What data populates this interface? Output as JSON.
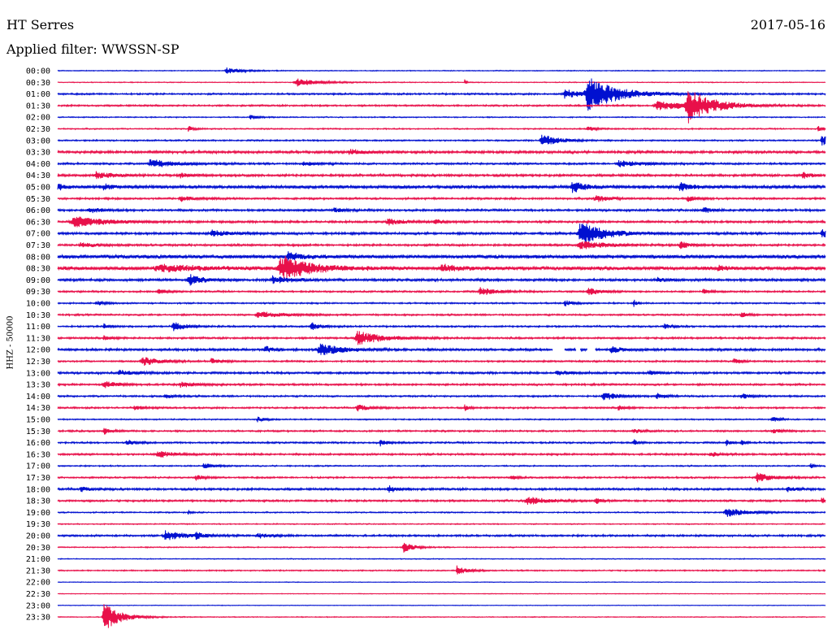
{
  "header": {
    "station": "HT Serres",
    "date": "2017-05-16",
    "filter": "Applied filter: WWSSN-SP"
  },
  "channel_label": "HHZ - 50000",
  "colors": {
    "blue": "#0010d0",
    "red": "#e8104a"
  },
  "chart_data": {
    "type": "line",
    "color_cycle": [
      "blue",
      "red"
    ],
    "rows": [
      {
        "time": "00:00",
        "color": "blue",
        "noise": 0.4,
        "events": [
          {
            "x": 0.22,
            "amp": 4,
            "dur": 0.02
          }
        ]
      },
      {
        "time": "00:30",
        "color": "red",
        "noise": 0.4,
        "events": [
          {
            "x": 0.31,
            "amp": 5,
            "dur": 0.03
          },
          {
            "x": 0.53,
            "amp": 5,
            "dur": 0.002
          }
        ]
      },
      {
        "time": "01:00",
        "color": "blue",
        "noise": 0.8,
        "events": [
          {
            "x": 0.66,
            "amp": 6,
            "dur": 0.02
          },
          {
            "x": 0.69,
            "amp": 22,
            "dur": 0.035
          }
        ]
      },
      {
        "time": "01:30",
        "color": "red",
        "noise": 0.8,
        "events": [
          {
            "x": 0.78,
            "amp": 6,
            "dur": 0.04
          },
          {
            "x": 0.82,
            "amp": 20,
            "dur": 0.03
          }
        ]
      },
      {
        "time": "02:00",
        "color": "blue",
        "noise": 0.5,
        "events": [
          {
            "x": 0.25,
            "amp": 3,
            "dur": 0.01
          }
        ]
      },
      {
        "time": "02:30",
        "color": "red",
        "noise": 0.6,
        "events": [
          {
            "x": 0.17,
            "amp": 4,
            "dur": 0.006
          },
          {
            "x": 0.69,
            "amp": 3,
            "dur": 0.01
          },
          {
            "x": 0.99,
            "amp": 4,
            "dur": 0.006
          }
        ]
      },
      {
        "time": "03:00",
        "color": "blue",
        "noise": 0.7,
        "events": [
          {
            "x": 0.63,
            "amp": 8,
            "dur": 0.02
          },
          {
            "x": 0.995,
            "amp": 7,
            "dur": 0.01
          }
        ]
      },
      {
        "time": "03:30",
        "color": "red",
        "noise": 1.2,
        "events": [
          {
            "x": 0.38,
            "amp": 3,
            "dur": 0.02
          }
        ]
      },
      {
        "time": "04:00",
        "color": "blue",
        "noise": 0.9,
        "events": [
          {
            "x": 0.12,
            "amp": 5,
            "dur": 0.03
          },
          {
            "x": 0.32,
            "amp": 3,
            "dur": 0.015
          },
          {
            "x": 0.73,
            "amp": 4,
            "dur": 0.03
          }
        ]
      },
      {
        "time": "04:30",
        "color": "red",
        "noise": 1.1,
        "events": [
          {
            "x": 0.05,
            "amp": 4,
            "dur": 0.02
          },
          {
            "x": 0.16,
            "amp": 3,
            "dur": 0.01
          },
          {
            "x": 0.97,
            "amp": 4,
            "dur": 0.01
          }
        ]
      },
      {
        "time": "05:00",
        "color": "blue",
        "noise": 1.5,
        "events": [
          {
            "x": 0.0,
            "amp": 4,
            "dur": 0.01
          },
          {
            "x": 0.06,
            "amp": 4,
            "dur": 0.01
          },
          {
            "x": 0.67,
            "amp": 7,
            "dur": 0.015
          },
          {
            "x": 0.81,
            "amp": 6,
            "dur": 0.015
          }
        ]
      },
      {
        "time": "05:30",
        "color": "red",
        "noise": 0.9,
        "events": [
          {
            "x": 0.16,
            "amp": 3,
            "dur": 0.02
          },
          {
            "x": 0.7,
            "amp": 5,
            "dur": 0.015
          },
          {
            "x": 0.82,
            "amp": 4,
            "dur": 0.01
          }
        ]
      },
      {
        "time": "06:00",
        "color": "blue",
        "noise": 1.0,
        "events": [
          {
            "x": 0.04,
            "amp": 4,
            "dur": 0.015
          },
          {
            "x": 0.36,
            "amp": 3,
            "dur": 0.01
          },
          {
            "x": 0.84,
            "amp": 4,
            "dur": 0.01
          }
        ]
      },
      {
        "time": "06:30",
        "color": "red",
        "noise": 1.0,
        "events": [
          {
            "x": 0.02,
            "amp": 7,
            "dur": 0.04
          },
          {
            "x": 0.43,
            "amp": 4,
            "dur": 0.02
          },
          {
            "x": 0.49,
            "amp": 3,
            "dur": 0.01
          }
        ]
      },
      {
        "time": "07:00",
        "color": "blue",
        "noise": 1.1,
        "events": [
          {
            "x": 0.2,
            "amp": 4,
            "dur": 0.02
          },
          {
            "x": 0.68,
            "amp": 15,
            "dur": 0.03
          },
          {
            "x": 0.995,
            "amp": 5,
            "dur": 0.01
          }
        ]
      },
      {
        "time": "07:30",
        "color": "red",
        "noise": 1.0,
        "events": [
          {
            "x": 0.03,
            "amp": 3,
            "dur": 0.02
          },
          {
            "x": 0.68,
            "amp": 5,
            "dur": 0.03
          },
          {
            "x": 0.81,
            "amp": 5,
            "dur": 0.01
          }
        ]
      },
      {
        "time": "08:00",
        "color": "blue",
        "noise": 1.8,
        "events": [
          {
            "x": 0.3,
            "amp": 5,
            "dur": 0.02
          }
        ]
      },
      {
        "time": "08:30",
        "color": "red",
        "noise": 1.8,
        "events": [
          {
            "x": 0.13,
            "amp": 4,
            "dur": 0.05
          },
          {
            "x": 0.29,
            "amp": 16,
            "dur": 0.035
          },
          {
            "x": 0.5,
            "amp": 4,
            "dur": 0.02
          },
          {
            "x": 0.86,
            "amp": 3,
            "dur": 0.01
          }
        ]
      },
      {
        "time": "09:00",
        "color": "blue",
        "noise": 1.2,
        "events": [
          {
            "x": 0.17,
            "amp": 7,
            "dur": 0.015
          },
          {
            "x": 0.28,
            "amp": 5,
            "dur": 0.02
          },
          {
            "x": 0.78,
            "amp": 3,
            "dur": 0.01
          }
        ]
      },
      {
        "time": "09:30",
        "color": "red",
        "noise": 0.8,
        "events": [
          {
            "x": 0.13,
            "amp": 3,
            "dur": 0.01
          },
          {
            "x": 0.55,
            "amp": 5,
            "dur": 0.02
          },
          {
            "x": 0.69,
            "amp": 5,
            "dur": 0.015
          },
          {
            "x": 0.84,
            "amp": 3,
            "dur": 0.008
          }
        ]
      },
      {
        "time": "10:00",
        "color": "blue",
        "noise": 0.7,
        "events": [
          {
            "x": 0.05,
            "amp": 3,
            "dur": 0.01
          },
          {
            "x": 0.66,
            "amp": 4,
            "dur": 0.01
          },
          {
            "x": 0.75,
            "amp": 5,
            "dur": 0.004
          }
        ]
      },
      {
        "time": "10:30",
        "color": "red",
        "noise": 0.8,
        "events": [
          {
            "x": 0.26,
            "amp": 4,
            "dur": 0.03
          },
          {
            "x": 0.89,
            "amp": 3,
            "dur": 0.01
          }
        ]
      },
      {
        "time": "11:00",
        "color": "blue",
        "noise": 0.8,
        "events": [
          {
            "x": 0.06,
            "amp": 3,
            "dur": 0.01
          },
          {
            "x": 0.15,
            "amp": 6,
            "dur": 0.015
          },
          {
            "x": 0.33,
            "amp": 5,
            "dur": 0.01
          },
          {
            "x": 0.79,
            "amp": 3,
            "dur": 0.01
          }
        ]
      },
      {
        "time": "11:30",
        "color": "red",
        "noise": 0.9,
        "events": [
          {
            "x": 0.06,
            "amp": 3,
            "dur": 0.01
          },
          {
            "x": 0.39,
            "amp": 9,
            "dur": 0.03
          }
        ]
      },
      {
        "time": "12:00",
        "color": "blue",
        "noise": 1.1,
        "events": [
          {
            "x": 0.27,
            "amp": 4,
            "dur": 0.01
          },
          {
            "x": 0.34,
            "amp": 7,
            "dur": 0.03
          },
          {
            "x": 0.72,
            "amp": 4,
            "dur": 0.015
          }
        ],
        "gaps": [
          [
            0.645,
            0.66
          ],
          [
            0.675,
            0.68
          ],
          [
            0.69,
            0.7
          ]
        ]
      },
      {
        "time": "12:30",
        "color": "red",
        "noise": 0.8,
        "events": [
          {
            "x": 0.11,
            "amp": 6,
            "dur": 0.02
          },
          {
            "x": 0.2,
            "amp": 4,
            "dur": 0.01
          },
          {
            "x": 0.88,
            "amp": 3,
            "dur": 0.01
          }
        ]
      },
      {
        "time": "13:00",
        "color": "blue",
        "noise": 1.0,
        "events": [
          {
            "x": 0.08,
            "amp": 3,
            "dur": 0.02
          },
          {
            "x": 0.65,
            "amp": 3,
            "dur": 0.015
          },
          {
            "x": 0.77,
            "amp": 3,
            "dur": 0.01
          }
        ]
      },
      {
        "time": "13:30",
        "color": "red",
        "noise": 0.9,
        "events": [
          {
            "x": 0.06,
            "amp": 5,
            "dur": 0.015
          },
          {
            "x": 0.16,
            "amp": 3,
            "dur": 0.02
          }
        ]
      },
      {
        "time": "14:00",
        "color": "blue",
        "noise": 0.8,
        "events": [
          {
            "x": 0.14,
            "amp": 3,
            "dur": 0.01
          },
          {
            "x": 0.71,
            "amp": 5,
            "dur": 0.02
          },
          {
            "x": 0.78,
            "amp": 4,
            "dur": 0.01
          },
          {
            "x": 0.89,
            "amp": 4,
            "dur": 0.01
          }
        ]
      },
      {
        "time": "14:30",
        "color": "red",
        "noise": 0.8,
        "events": [
          {
            "x": 0.1,
            "amp": 3,
            "dur": 0.01
          },
          {
            "x": 0.39,
            "amp": 4,
            "dur": 0.015
          },
          {
            "x": 0.53,
            "amp": 4,
            "dur": 0.005
          },
          {
            "x": 0.73,
            "amp": 3,
            "dur": 0.01
          }
        ]
      },
      {
        "time": "15:00",
        "color": "blue",
        "noise": 0.6,
        "events": [
          {
            "x": 0.26,
            "amp": 3,
            "dur": 0.01
          },
          {
            "x": 0.93,
            "amp": 4,
            "dur": 0.008
          }
        ]
      },
      {
        "time": "15:30",
        "color": "red",
        "noise": 0.8,
        "events": [
          {
            "x": 0.06,
            "amp": 4,
            "dur": 0.01
          },
          {
            "x": 0.75,
            "amp": 3,
            "dur": 0.01
          },
          {
            "x": 0.93,
            "amp": 3,
            "dur": 0.01
          }
        ]
      },
      {
        "time": "16:00",
        "color": "blue",
        "noise": 0.8,
        "events": [
          {
            "x": 0.09,
            "amp": 4,
            "dur": 0.01
          },
          {
            "x": 0.42,
            "amp": 4,
            "dur": 0.008
          },
          {
            "x": 0.75,
            "amp": 4,
            "dur": 0.005
          },
          {
            "x": 0.87,
            "amp": 4,
            "dur": 0.006
          },
          {
            "x": 0.89,
            "amp": 3,
            "dur": 0.006
          }
        ]
      },
      {
        "time": "16:30",
        "color": "red",
        "noise": 0.9,
        "events": [
          {
            "x": 0.13,
            "amp": 5,
            "dur": 0.015
          },
          {
            "x": 0.85,
            "amp": 3,
            "dur": 0.01
          }
        ]
      },
      {
        "time": "17:00",
        "color": "blue",
        "noise": 0.6,
        "events": [
          {
            "x": 0.19,
            "amp": 3,
            "dur": 0.015
          },
          {
            "x": 0.98,
            "amp": 4,
            "dur": 0.005
          }
        ]
      },
      {
        "time": "17:30",
        "color": "red",
        "noise": 0.8,
        "events": [
          {
            "x": 0.18,
            "amp": 3,
            "dur": 0.01
          },
          {
            "x": 0.59,
            "amp": 3,
            "dur": 0.006
          },
          {
            "x": 0.91,
            "amp": 6,
            "dur": 0.02
          }
        ]
      },
      {
        "time": "18:00",
        "color": "blue",
        "noise": 1.0,
        "events": [
          {
            "x": 0.03,
            "amp": 3,
            "dur": 0.01
          },
          {
            "x": 0.43,
            "amp": 5,
            "dur": 0.01
          },
          {
            "x": 0.95,
            "amp": 3,
            "dur": 0.01
          }
        ]
      },
      {
        "time": "18:30",
        "color": "red",
        "noise": 0.9,
        "events": [
          {
            "x": 0.61,
            "amp": 6,
            "dur": 0.02
          },
          {
            "x": 0.7,
            "amp": 4,
            "dur": 0.008
          },
          {
            "x": 0.995,
            "amp": 4,
            "dur": 0.006
          }
        ]
      },
      {
        "time": "19:00",
        "color": "blue",
        "noise": 0.6,
        "events": [
          {
            "x": 0.17,
            "amp": 3,
            "dur": 0.003
          },
          {
            "x": 0.87,
            "amp": 6,
            "dur": 0.025
          }
        ]
      },
      {
        "time": "19:30",
        "color": "red",
        "noise": 0.5,
        "events": []
      },
      {
        "time": "20:00",
        "color": "blue",
        "noise": 0.9,
        "events": [
          {
            "x": 0.14,
            "amp": 6,
            "dur": 0.025
          },
          {
            "x": 0.18,
            "amp": 4,
            "dur": 0.01
          },
          {
            "x": 0.26,
            "amp": 3,
            "dur": 0.015
          }
        ]
      },
      {
        "time": "20:30",
        "color": "red",
        "noise": 0.5,
        "events": [
          {
            "x": 0.45,
            "amp": 7,
            "dur": 0.012
          }
        ]
      },
      {
        "time": "21:00",
        "color": "blue",
        "noise": 0.4,
        "events": []
      },
      {
        "time": "21:30",
        "color": "red",
        "noise": 0.6,
        "events": [
          {
            "x": 0.52,
            "amp": 6,
            "dur": 0.012
          }
        ]
      },
      {
        "time": "22:00",
        "color": "blue",
        "noise": 0.3,
        "events": []
      },
      {
        "time": "22:30",
        "color": "red",
        "noise": 0.3,
        "events": []
      },
      {
        "time": "23:00",
        "color": "blue",
        "noise": 0.3,
        "events": []
      },
      {
        "time": "23:30",
        "color": "red",
        "noise": 0.4,
        "events": [
          {
            "x": 0.06,
            "amp": 18,
            "dur": 0.02
          }
        ]
      }
    ]
  }
}
